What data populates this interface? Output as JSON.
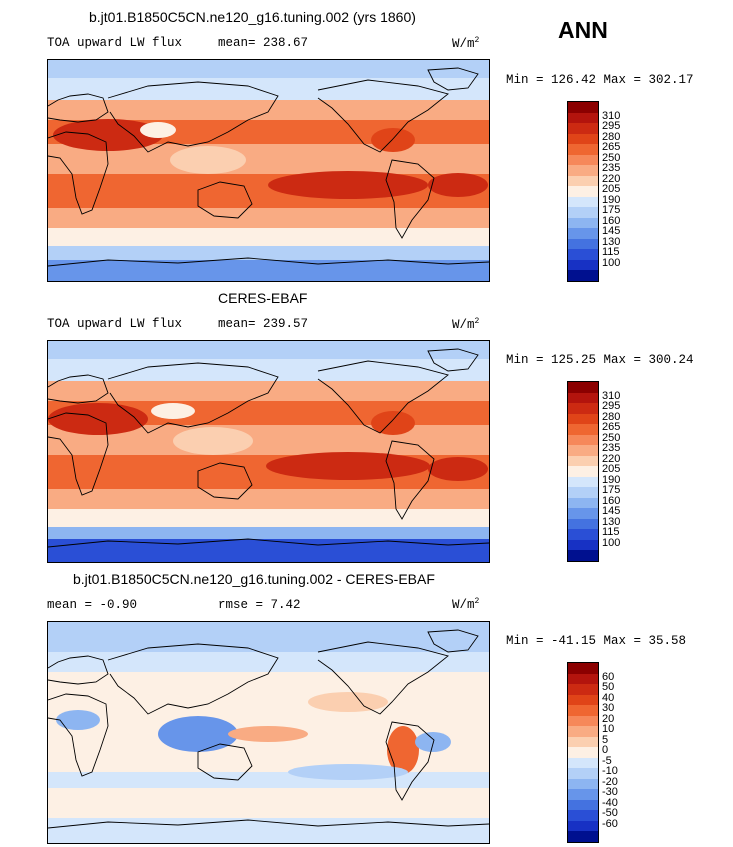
{
  "header": {
    "season": "ANN"
  },
  "units": {
    "base": "W/m",
    "exponent": "2"
  },
  "panels": [
    {
      "title": "b.jt01.B1850C5CN.ne120_g16.tuning.002 (yrs 1860)",
      "variable": "TOA upward LW flux",
      "stat1": "mean= 238.67",
      "stat2": "",
      "minmax": "Min = 126.42 Max = 302.17"
    },
    {
      "title": "CERES-EBAF",
      "variable": "TOA upward LW flux",
      "stat1": "mean= 239.57",
      "stat2": "",
      "minmax": "Min = 125.25 Max = 300.24"
    },
    {
      "title": "b.jt01.B1850C5CN.ne120_g16.tuning.002 - CERES-EBAF",
      "variable": "",
      "stat1": "mean =  -0.90",
      "stat2": "rmse =   7.42",
      "minmax": "Min = -41.15 Max =  35.58"
    }
  ],
  "colorbars": {
    "flux": {
      "labels": [
        "310",
        "295",
        "280",
        "265",
        "250",
        "235",
        "220",
        "205",
        "190",
        "175",
        "160",
        "145",
        "130",
        "115",
        "100"
      ],
      "colors": [
        "#8b0000",
        "#b3140d",
        "#cc2a12",
        "#e04418",
        "#ef6631",
        "#f6885a",
        "#f9ab83",
        "#fbcfb0",
        "#fdf0e4",
        "#d4e6fb",
        "#b3d0f7",
        "#8db5f1",
        "#6795ea",
        "#4472e0",
        "#2a4fd6",
        "#1731c4",
        "#00108f"
      ]
    },
    "diff": {
      "labels": [
        "60",
        "50",
        "40",
        "30",
        "20",
        "10",
        "5",
        "0",
        "-5",
        "-10",
        "-20",
        "-30",
        "-40",
        "-50",
        "-60"
      ],
      "colors": [
        "#8b0000",
        "#b3140d",
        "#cc2a12",
        "#e04418",
        "#ef6631",
        "#f6885a",
        "#f9ab83",
        "#fbcfb0",
        "#fdf0e4",
        "#d4e6fb",
        "#b3d0f7",
        "#8db5f1",
        "#6795ea",
        "#4472e0",
        "#2a4fd6",
        "#1731c4",
        "#00108f"
      ]
    }
  },
  "chart_data": [
    {
      "type": "heatmap",
      "title": "b.jt01.B1850C5CN.ne120_g16.tuning.002 (yrs 1860)",
      "variable": "TOA upward LW flux",
      "units": "W/m2",
      "mean": 238.67,
      "min": 126.42,
      "max": 302.17,
      "contour_levels": [
        100,
        115,
        130,
        145,
        160,
        175,
        190,
        205,
        220,
        235,
        250,
        265,
        280,
        295,
        310
      ],
      "projection": "cylindrical equidistant, global"
    },
    {
      "type": "heatmap",
      "title": "CERES-EBAF",
      "variable": "TOA upward LW flux",
      "units": "W/m2",
      "mean": 239.57,
      "min": 125.25,
      "max": 300.24,
      "contour_levels": [
        100,
        115,
        130,
        145,
        160,
        175,
        190,
        205,
        220,
        235,
        250,
        265,
        280,
        295,
        310
      ],
      "projection": "cylindrical equidistant, global"
    },
    {
      "type": "heatmap",
      "title": "b.jt01.B1850C5CN.ne120_g16.tuning.002 - CERES-EBAF",
      "units": "W/m2",
      "mean": -0.9,
      "rmse": 7.42,
      "min": -41.15,
      "max": 35.58,
      "contour_levels": [
        -60,
        -50,
        -40,
        -30,
        -20,
        -10,
        -5,
        0,
        5,
        10,
        20,
        30,
        40,
        50,
        60
      ],
      "projection": "cylindrical equidistant, global"
    }
  ]
}
